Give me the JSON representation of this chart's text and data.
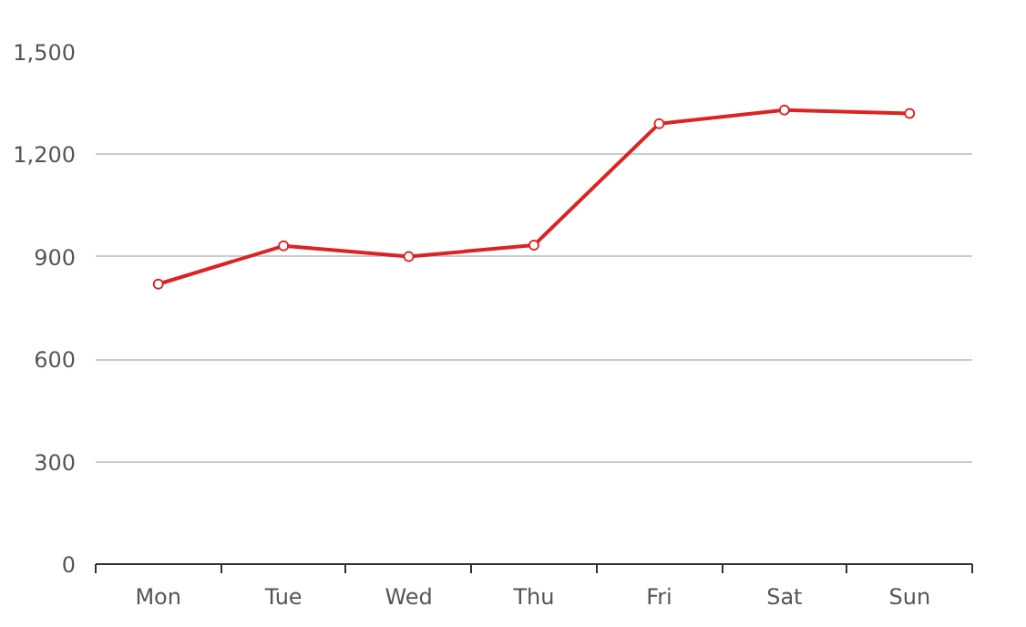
{
  "chart_data": {
    "type": "line",
    "categories": [
      "Mon",
      "Tue",
      "Wed",
      "Thu",
      "Fri",
      "Sat",
      "Sun"
    ],
    "series": [
      {
        "color": "#dd2222",
        "values": [
          820,
          932,
          901,
          934,
          1290,
          1330,
          1320
        ]
      }
    ],
    "ylim": [
      0,
      1500
    ],
    "yticks": [
      0,
      {
        "value": 300,
        "label": "300"
      },
      {
        "value": 600,
        "label": "600"
      },
      {
        "value": 900,
        "label": "900"
      },
      {
        "value": 1200,
        "label": "1,200"
      },
      {
        "value": 1500,
        "label": "1,500"
      }
    ],
    "grid": "y",
    "marker": "circle",
    "line_style": "solid"
  }
}
